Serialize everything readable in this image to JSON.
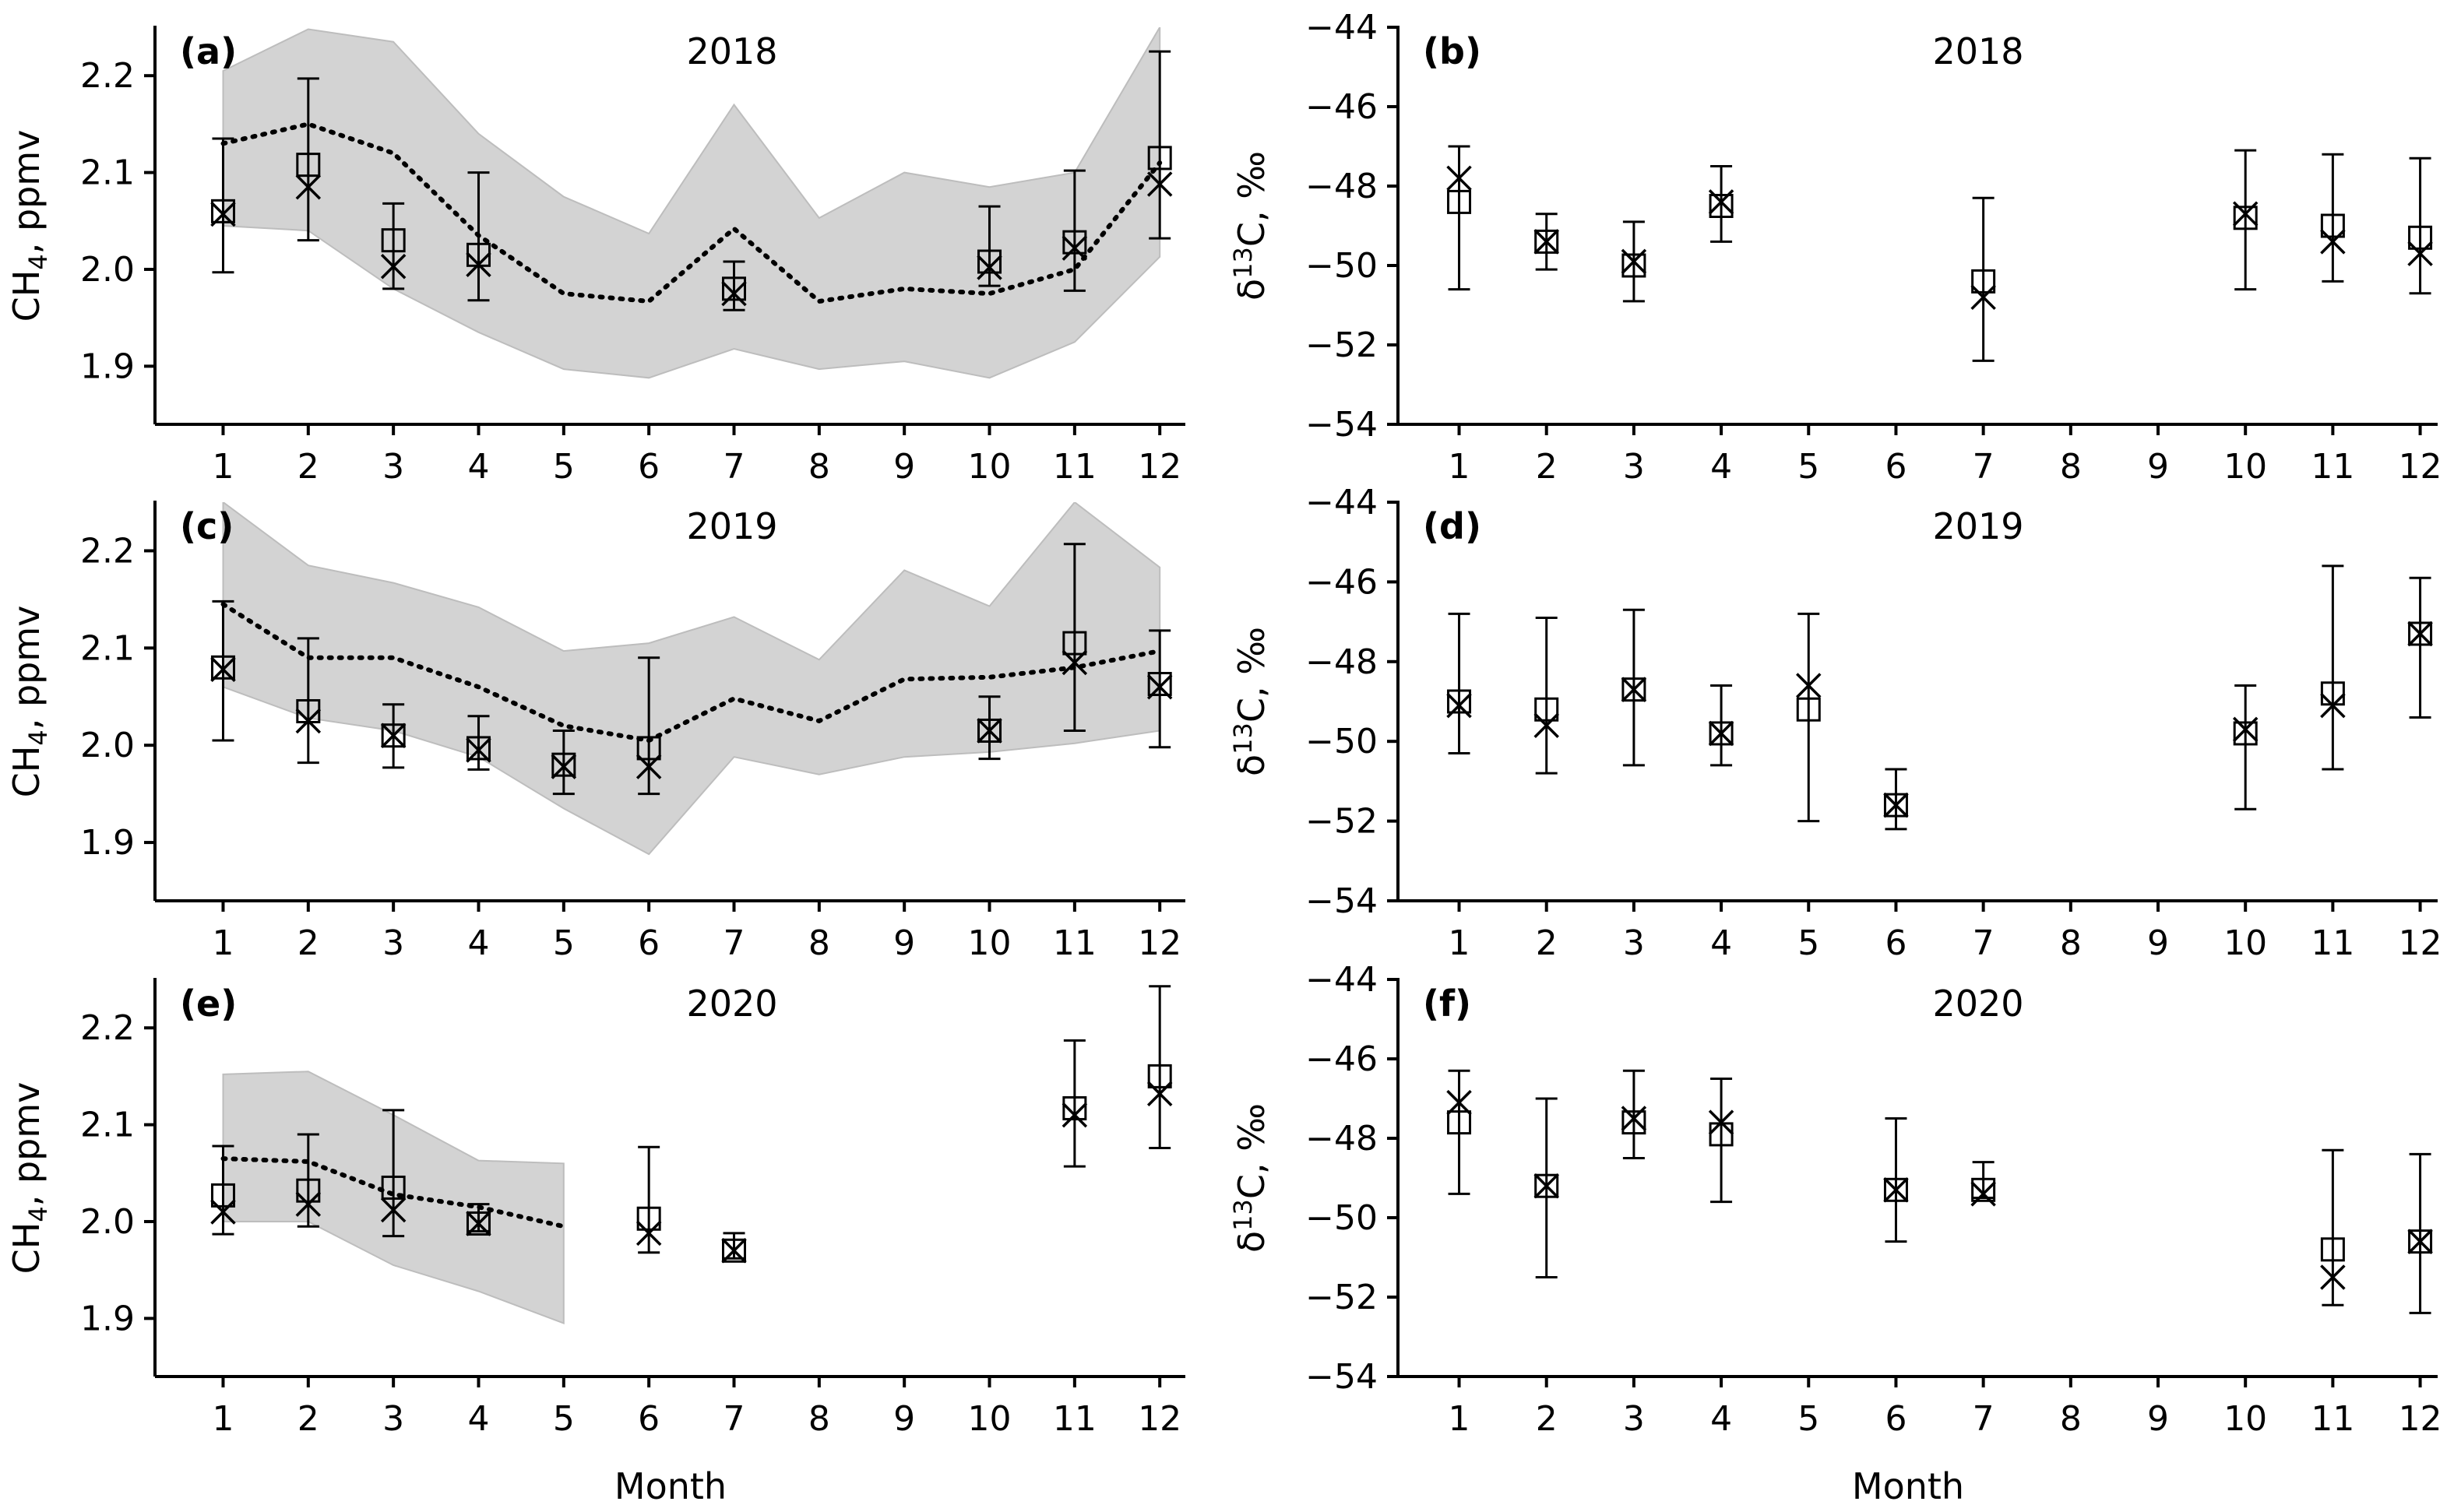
{
  "figure": {
    "x_axis_label": "Month",
    "sub_text": "4",
    "sup_text": "13"
  },
  "chart_data": [
    {
      "id": "a",
      "panel_label": "(a)",
      "title": "2018",
      "type": "line",
      "quantity": "ch4",
      "ylabel_prefix": "CH",
      "ylabel_suffix": ", ppmv",
      "ylim": [
        1.84,
        2.25
      ],
      "yticks": [
        1.9,
        2.0,
        2.1,
        2.2
      ],
      "ytick_labels": [
        "1.9",
        "2.0",
        "2.1",
        "2.2"
      ],
      "xlim": [
        0.2,
        12.3
      ],
      "xticks": [
        1,
        2,
        3,
        4,
        5,
        6,
        7,
        8,
        9,
        10,
        11,
        12
      ],
      "model_band": {
        "x": [
          1,
          2,
          3,
          4,
          5,
          6,
          7,
          8,
          9,
          10,
          11,
          12
        ],
        "lower": [
          2.045,
          2.04,
          1.98,
          1.935,
          1.897,
          1.888,
          1.918,
          1.897,
          1.905,
          1.888,
          1.925,
          2.013
        ],
        "upper": [
          2.205,
          2.248,
          2.235,
          2.14,
          2.075,
          2.037,
          2.17,
          2.053,
          2.1,
          2.085,
          2.1,
          2.25
        ]
      },
      "model_mean": {
        "x": [
          1,
          2,
          3,
          4,
          5,
          6,
          7,
          8,
          9,
          10,
          11,
          12
        ],
        "y": [
          2.13,
          2.15,
          2.12,
          2.035,
          1.975,
          1.967,
          2.042,
          1.967,
          1.98,
          1.975,
          2.0,
          2.11
        ]
      },
      "obs_square": [
        {
          "month": 1,
          "value": 2.06
        },
        {
          "month": 2,
          "value": 2.108
        },
        {
          "month": 3,
          "value": 2.03
        },
        {
          "month": 4,
          "value": 2.015
        },
        {
          "month": 7,
          "value": 1.98
        },
        {
          "month": 10,
          "value": 2.008
        },
        {
          "month": 11,
          "value": 2.028
        },
        {
          "month": 12,
          "value": 2.115
        }
      ],
      "obs_x": [
        {
          "month": 1,
          "value": 2.057,
          "err_low": 1.997,
          "err_high": 2.135
        },
        {
          "month": 2,
          "value": 2.085,
          "err_low": 2.03,
          "err_high": 2.197
        },
        {
          "month": 3,
          "value": 2.003,
          "err_low": 1.98,
          "err_high": 2.068
        },
        {
          "month": 4,
          "value": 2.005,
          "err_low": 1.968,
          "err_high": 2.1
        },
        {
          "month": 7,
          "value": 1.975,
          "err_low": 1.958,
          "err_high": 2.008
        },
        {
          "month": 10,
          "value": 2.002,
          "err_low": 1.983,
          "err_high": 2.065
        },
        {
          "month": 11,
          "value": 2.022,
          "err_low": 1.978,
          "err_high": 2.102
        },
        {
          "month": 12,
          "value": 2.088,
          "err_low": 2.032,
          "err_high": 2.225
        }
      ]
    },
    {
      "id": "b",
      "panel_label": "(b)",
      "title": "2018",
      "type": "scatter",
      "quantity": "d13c",
      "ylabel_prefix": "δ",
      "ylabel_suffix": "C, ‰",
      "ylim": [
        -54,
        -44
      ],
      "yticks": [
        -54,
        -52,
        -50,
        -48,
        -46,
        -44
      ],
      "ytick_labels": [
        "−54",
        "−52",
        "−50",
        "−48",
        "−46",
        "−44"
      ],
      "xlim": [
        0.3,
        12.2
      ],
      "xticks": [
        1,
        2,
        3,
        4,
        5,
        6,
        7,
        8,
        9,
        10,
        11,
        12
      ],
      "obs_square": [
        {
          "month": 1,
          "value": -48.4
        },
        {
          "month": 2,
          "value": -49.4
        },
        {
          "month": 3,
          "value": -50.0
        },
        {
          "month": 4,
          "value": -48.5
        },
        {
          "month": 7,
          "value": -50.4
        },
        {
          "month": 10,
          "value": -48.8
        },
        {
          "month": 11,
          "value": -49.0
        },
        {
          "month": 12,
          "value": -49.3
        }
      ],
      "obs_x": [
        {
          "month": 1,
          "value": -47.8,
          "err_low": -50.6,
          "err_high": -47.0
        },
        {
          "month": 2,
          "value": -49.4,
          "err_low": -50.1,
          "err_high": -48.7
        },
        {
          "month": 3,
          "value": -49.9,
          "err_low": -50.9,
          "err_high": -48.9
        },
        {
          "month": 4,
          "value": -48.4,
          "err_low": -49.4,
          "err_high": -47.5
        },
        {
          "month": 7,
          "value": -50.8,
          "err_low": -52.4,
          "err_high": -48.3
        },
        {
          "month": 10,
          "value": -48.7,
          "err_low": -50.6,
          "err_high": -47.1
        },
        {
          "month": 11,
          "value": -49.4,
          "err_low": -50.4,
          "err_high": -47.2
        },
        {
          "month": 12,
          "value": -49.7,
          "err_low": -50.7,
          "err_high": -47.3
        }
      ]
    },
    {
      "id": "c",
      "panel_label": "(c)",
      "title": "2019",
      "type": "line",
      "quantity": "ch4",
      "ylabel_prefix": "CH",
      "ylabel_suffix": ", ppmv",
      "ylim": [
        1.84,
        2.25
      ],
      "yticks": [
        1.9,
        2.0,
        2.1,
        2.2
      ],
      "ytick_labels": [
        "1.9",
        "2.0",
        "2.1",
        "2.2"
      ],
      "xlim": [
        0.2,
        12.3
      ],
      "xticks": [
        1,
        2,
        3,
        4,
        5,
        6,
        7,
        8,
        9,
        10,
        11,
        12
      ],
      "model_band": {
        "x": [
          1,
          2,
          3,
          4,
          5,
          6,
          7,
          8,
          9,
          10,
          11,
          12
        ],
        "lower": [
          2.06,
          2.028,
          2.015,
          1.988,
          1.935,
          1.888,
          1.988,
          1.97,
          1.988,
          1.993,
          2.002,
          2.015
        ],
        "upper": [
          2.25,
          2.185,
          2.167,
          2.142,
          2.097,
          2.105,
          2.132,
          2.088,
          2.18,
          2.143,
          2.25,
          2.183
        ]
      },
      "model_mean": {
        "x": [
          1,
          2,
          3,
          4,
          5,
          6,
          7,
          8,
          9,
          10,
          11,
          12
        ],
        "y": [
          2.145,
          2.09,
          2.09,
          2.06,
          2.02,
          2.005,
          2.048,
          2.025,
          2.068,
          2.07,
          2.08,
          2.097
        ]
      },
      "obs_square": [
        {
          "month": 1,
          "value": 2.08
        },
        {
          "month": 2,
          "value": 2.035
        },
        {
          "month": 3,
          "value": 2.01
        },
        {
          "month": 4,
          "value": 1.997
        },
        {
          "month": 5,
          "value": 1.98
        },
        {
          "month": 6,
          "value": 1.997
        },
        {
          "month": 10,
          "value": 2.015
        },
        {
          "month": 11,
          "value": 2.105
        },
        {
          "month": 12,
          "value": 2.063
        }
      ],
      "obs_x": [
        {
          "month": 1,
          "value": 2.078,
          "err_low": 2.005,
          "err_high": 2.148
        },
        {
          "month": 2,
          "value": 2.025,
          "err_low": 1.982,
          "err_high": 2.11
        },
        {
          "month": 3,
          "value": 2.01,
          "err_low": 1.977,
          "err_high": 2.042
        },
        {
          "month": 4,
          "value": 1.995,
          "err_low": 1.975,
          "err_high": 2.03
        },
        {
          "month": 5,
          "value": 1.978,
          "err_low": 1.95,
          "err_high": 2.015
        },
        {
          "month": 6,
          "value": 1.978,
          "err_low": 1.95,
          "err_high": 2.09
        },
        {
          "month": 10,
          "value": 2.015,
          "err_low": 1.986,
          "err_high": 2.05
        },
        {
          "month": 11,
          "value": 2.085,
          "err_low": 2.015,
          "err_high": 2.207
        },
        {
          "month": 12,
          "value": 2.06,
          "err_low": 1.998,
          "err_high": 2.118
        }
      ]
    },
    {
      "id": "d",
      "panel_label": "(d)",
      "title": "2019",
      "type": "scatter",
      "quantity": "d13c",
      "ylabel_prefix": "δ",
      "ylabel_suffix": "C, ‰",
      "ylim": [
        -54,
        -44
      ],
      "yticks": [
        -54,
        -52,
        -50,
        -48,
        -46,
        -44
      ],
      "ytick_labels": [
        "−54",
        "−52",
        "−50",
        "−48",
        "−46",
        "−44"
      ],
      "xlim": [
        0.3,
        12.2
      ],
      "xticks": [
        1,
        2,
        3,
        4,
        5,
        6,
        7,
        8,
        9,
        10,
        11,
        12
      ],
      "obs_square": [
        {
          "month": 1,
          "value": -49.0
        },
        {
          "month": 2,
          "value": -49.2
        },
        {
          "month": 3,
          "value": -48.7
        },
        {
          "month": 4,
          "value": -49.8
        },
        {
          "month": 5,
          "value": -49.2
        },
        {
          "month": 6,
          "value": -51.6
        },
        {
          "month": 10,
          "value": -49.8
        },
        {
          "month": 11,
          "value": -48.8
        },
        {
          "month": 12,
          "value": -47.3
        }
      ],
      "obs_x": [
        {
          "month": 1,
          "value": -49.1,
          "err_low": -50.3,
          "err_high": -46.8
        },
        {
          "month": 2,
          "value": -49.6,
          "err_low": -50.8,
          "err_high": -46.9
        },
        {
          "month": 3,
          "value": -48.7,
          "err_low": -50.6,
          "err_high": -46.7
        },
        {
          "month": 4,
          "value": -49.8,
          "err_low": -50.6,
          "err_high": -48.6
        },
        {
          "month": 5,
          "value": -48.6,
          "err_low": -52.0,
          "err_high": -46.8
        },
        {
          "month": 6,
          "value": -51.6,
          "err_low": -52.2,
          "err_high": -50.7
        },
        {
          "month": 10,
          "value": -49.7,
          "err_low": -51.7,
          "err_high": -48.6
        },
        {
          "month": 11,
          "value": -49.1,
          "err_low": -50.7,
          "err_high": -45.6
        },
        {
          "month": 12,
          "value": -47.3,
          "err_low": -49.4,
          "err_high": -45.9
        }
      ]
    },
    {
      "id": "e",
      "panel_label": "(e)",
      "title": "2020",
      "type": "line",
      "quantity": "ch4",
      "ylabel_prefix": "CH",
      "ylabel_suffix": ", ppmv",
      "ylim": [
        1.84,
        2.25
      ],
      "yticks": [
        1.9,
        2.0,
        2.1,
        2.2
      ],
      "ytick_labels": [
        "1.9",
        "2.0",
        "2.1",
        "2.2"
      ],
      "xlim": [
        0.2,
        12.3
      ],
      "xticks": [
        1,
        2,
        3,
        4,
        5,
        6,
        7,
        8,
        9,
        10,
        11,
        12
      ],
      "model_band": {
        "x": [
          1,
          2,
          3,
          4,
          5
        ],
        "lower": [
          2.0,
          2.0,
          1.955,
          1.928,
          1.895
        ],
        "upper": [
          2.152,
          2.155,
          2.11,
          2.063,
          2.06
        ]
      },
      "model_mean": {
        "x": [
          1,
          2,
          3,
          4,
          5
        ],
        "y": [
          2.065,
          2.062,
          2.028,
          2.015,
          1.995
        ]
      },
      "obs_square": [
        {
          "month": 1,
          "value": 2.027
        },
        {
          "month": 2,
          "value": 2.032
        },
        {
          "month": 3,
          "value": 2.035
        },
        {
          "month": 4,
          "value": 1.998
        },
        {
          "month": 6,
          "value": 2.003
        },
        {
          "month": 7,
          "value": 1.97
        },
        {
          "month": 11,
          "value": 2.117
        },
        {
          "month": 12,
          "value": 2.15
        }
      ],
      "obs_x": [
        {
          "month": 1,
          "value": 2.01,
          "err_low": 1.987,
          "err_high": 2.078
        },
        {
          "month": 2,
          "value": 2.018,
          "err_low": 1.995,
          "err_high": 2.09
        },
        {
          "month": 3,
          "value": 2.012,
          "err_low": 1.985,
          "err_high": 2.115
        },
        {
          "month": 4,
          "value": 1.998,
          "err_low": 1.99,
          "err_high": 2.018
        },
        {
          "month": 6,
          "value": 1.988,
          "err_low": 1.968,
          "err_high": 2.077
        },
        {
          "month": 7,
          "value": 1.97,
          "err_low": 1.962,
          "err_high": 1.988
        },
        {
          "month": 11,
          "value": 2.11,
          "err_low": 2.057,
          "err_high": 2.187
        },
        {
          "month": 12,
          "value": 2.132,
          "err_low": 2.076,
          "err_high": 2.243
        }
      ]
    },
    {
      "id": "f",
      "panel_label": "(f)",
      "title": "2020",
      "type": "scatter",
      "quantity": "d13c",
      "ylabel_prefix": "δ",
      "ylabel_suffix": "C, ‰",
      "ylim": [
        -54,
        -44
      ],
      "yticks": [
        -54,
        -52,
        -50,
        -48,
        -46,
        -44
      ],
      "ytick_labels": [
        "−54",
        "−52",
        "−50",
        "−48",
        "−46",
        "−44"
      ],
      "xlim": [
        0.3,
        12.2
      ],
      "xticks": [
        1,
        2,
        3,
        4,
        5,
        6,
        7,
        8,
        9,
        10,
        11,
        12
      ],
      "obs_square": [
        {
          "month": 1,
          "value": -47.6
        },
        {
          "month": 2,
          "value": -49.2
        },
        {
          "month": 3,
          "value": -47.6
        },
        {
          "month": 4,
          "value": -47.9
        },
        {
          "month": 6,
          "value": -49.3
        },
        {
          "month": 7,
          "value": -49.3
        },
        {
          "month": 11,
          "value": -50.8
        },
        {
          "month": 12,
          "value": -50.6
        }
      ],
      "obs_x": [
        {
          "month": 1,
          "value": -47.1,
          "err_low": -49.4,
          "err_high": -46.3
        },
        {
          "month": 2,
          "value": -49.2,
          "err_low": -51.5,
          "err_high": -47.0
        },
        {
          "month": 3,
          "value": -47.5,
          "err_low": -48.5,
          "err_high": -46.3
        },
        {
          "month": 4,
          "value": -47.6,
          "err_low": -49.6,
          "err_high": -46.5
        },
        {
          "month": 6,
          "value": -49.3,
          "err_low": -50.6,
          "err_high": -47.5
        },
        {
          "month": 7,
          "value": -49.4,
          "err_low": -49.5,
          "err_high": -48.6
        },
        {
          "month": 11,
          "value": -51.5,
          "err_low": -52.2,
          "err_high": -48.3
        },
        {
          "month": 12,
          "value": -50.6,
          "err_low": -52.4,
          "err_high": -48.4
        }
      ]
    }
  ]
}
